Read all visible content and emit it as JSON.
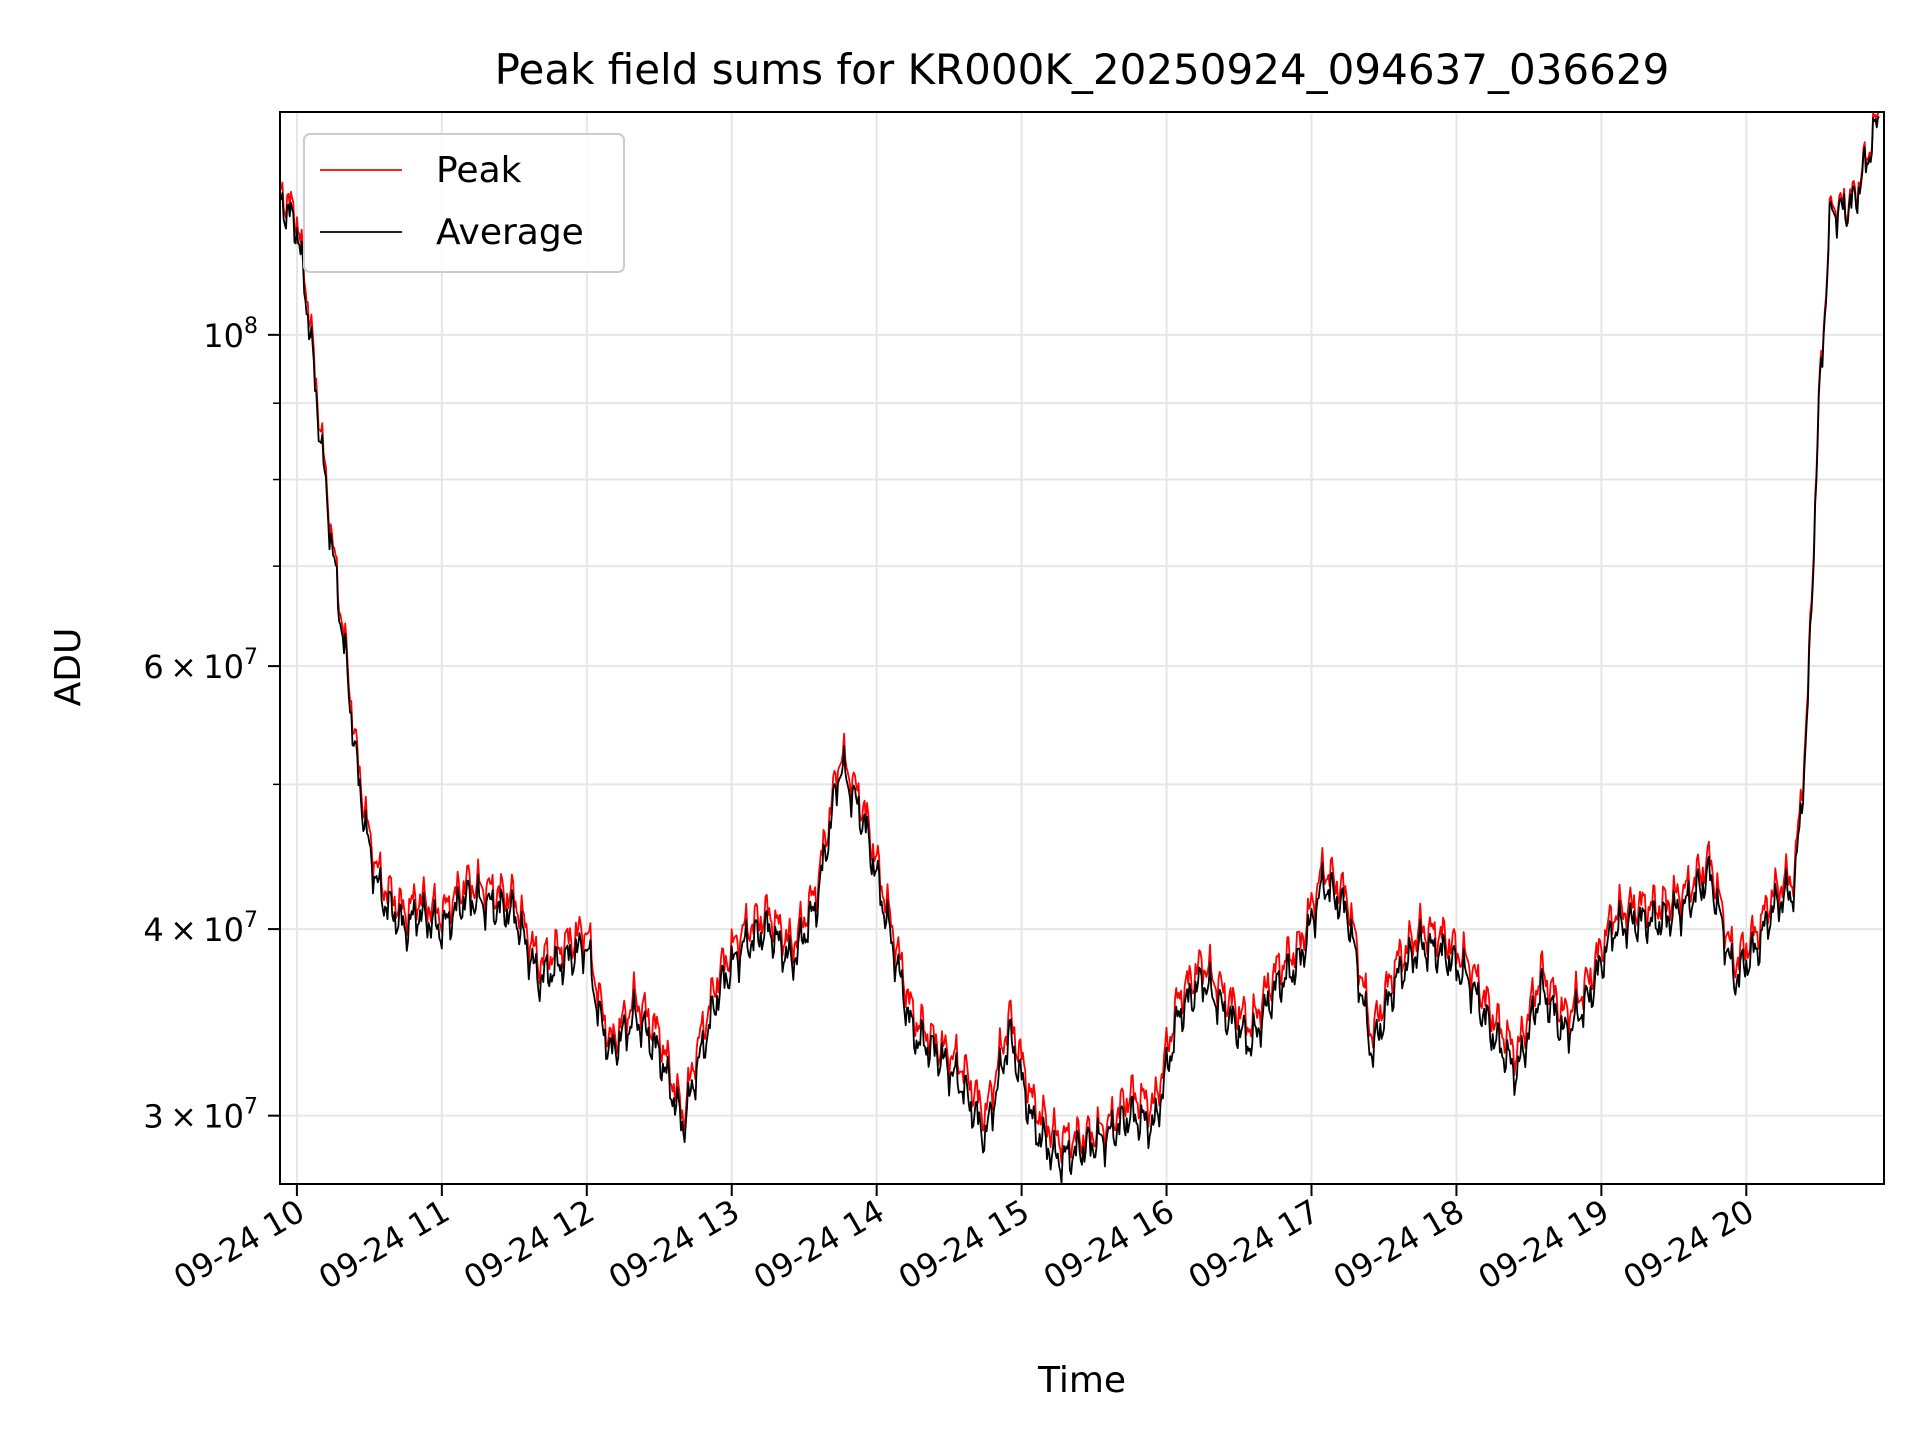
{
  "chart_data": {
    "type": "line",
    "title": "Peak field sums for KR000K_20250924_094637_036629",
    "xlabel": "Time",
    "ylabel": "ADU",
    "yscale": "log",
    "xlim": [
      "2025-09-24 09:53",
      "2025-09-24 20:57"
    ],
    "ylim": [
      27000000,
      141000000
    ],
    "grid": true,
    "legend_position": "top-left",
    "x_ticks": [
      {
        "value": "2025-09-24 10:00",
        "label": "09-24 10"
      },
      {
        "value": "2025-09-24 11:00",
        "label": "09-24 11"
      },
      {
        "value": "2025-09-24 12:00",
        "label": "09-24 12"
      },
      {
        "value": "2025-09-24 13:00",
        "label": "09-24 13"
      },
      {
        "value": "2025-09-24 14:00",
        "label": "09-24 14"
      },
      {
        "value": "2025-09-24 15:00",
        "label": "09-24 15"
      },
      {
        "value": "2025-09-24 16:00",
        "label": "09-24 16"
      },
      {
        "value": "2025-09-24 17:00",
        "label": "09-24 17"
      },
      {
        "value": "2025-09-24 18:00",
        "label": "09-24 18"
      },
      {
        "value": "2025-09-24 19:00",
        "label": "09-24 19"
      },
      {
        "value": "2025-09-24 20:00",
        "label": "09-24 20"
      }
    ],
    "y_ticks_major": [
      {
        "value": 30000000,
        "mantissa": "3",
        "exponent": "7"
      },
      {
        "value": 40000000,
        "mantissa": "4",
        "exponent": "7"
      },
      {
        "value": 60000000,
        "mantissa": "6",
        "exponent": "7"
      },
      {
        "value": 100000000,
        "mantissa": "",
        "exponent": "8"
      }
    ],
    "y_ticks_minor": [
      50000000,
      70000000,
      80000000,
      90000000
    ],
    "series": [
      {
        "name": "Peak",
        "color": "#ff0000",
        "x": [
          "2025-09-24 09:53",
          "2025-09-24 10:00",
          "2025-09-24 10:05",
          "2025-09-24 10:10",
          "2025-09-24 10:15",
          "2025-09-24 10:20",
          "2025-09-24 10:25",
          "2025-09-24 10:30",
          "2025-09-24 10:35",
          "2025-09-24 10:40",
          "2025-09-24 10:45",
          "2025-09-24 10:50",
          "2025-09-24 10:55",
          "2025-09-24 11:00",
          "2025-09-24 11:10",
          "2025-09-24 11:20",
          "2025-09-24 11:30",
          "2025-09-24 11:40",
          "2025-09-24 11:50",
          "2025-09-24 12:00",
          "2025-09-24 12:05",
          "2025-09-24 12:10",
          "2025-09-24 12:20",
          "2025-09-24 12:30",
          "2025-09-24 12:40",
          "2025-09-24 12:45",
          "2025-09-24 12:55",
          "2025-09-24 13:05",
          "2025-09-24 13:15",
          "2025-09-24 13:25",
          "2025-09-24 13:35",
          "2025-09-24 13:45",
          "2025-09-24 13:55",
          "2025-09-24 14:05",
          "2025-09-24 14:15",
          "2025-09-24 14:25",
          "2025-09-24 14:35",
          "2025-09-24 14:45",
          "2025-09-24 14:55",
          "2025-09-24 15:05",
          "2025-09-24 15:15",
          "2025-09-24 15:25",
          "2025-09-24 15:35",
          "2025-09-24 15:45",
          "2025-09-24 15:55",
          "2025-09-24 16:05",
          "2025-09-24 16:15",
          "2025-09-24 16:25",
          "2025-09-24 16:35",
          "2025-09-24 16:45",
          "2025-09-24 16:55",
          "2025-09-24 17:05",
          "2025-09-24 17:15",
          "2025-09-24 17:25",
          "2025-09-24 17:35",
          "2025-09-24 17:45",
          "2025-09-24 17:55",
          "2025-09-24 18:05",
          "2025-09-24 18:15",
          "2025-09-24 18:25",
          "2025-09-24 18:35",
          "2025-09-24 18:45",
          "2025-09-24 18:55",
          "2025-09-24 19:05",
          "2025-09-24 19:15",
          "2025-09-24 19:25",
          "2025-09-24 19:35",
          "2025-09-24 19:45",
          "2025-09-24 19:55",
          "2025-09-24 20:05",
          "2025-09-24 20:10",
          "2025-09-24 20:15",
          "2025-09-24 20:20",
          "2025-09-24 20:25",
          "2025-09-24 20:30",
          "2025-09-24 20:35",
          "2025-09-24 20:40",
          "2025-09-24 20:45",
          "2025-09-24 20:50",
          "2025-09-24 20:55"
        ],
        "values": [
          125000000,
          120000000,
          104000000,
          86000000,
          72000000,
          62000000,
          52000000,
          46000000,
          43000000,
          42000000,
          41000000,
          42000000,
          41500000,
          41000000,
          43000000,
          42500000,
          42000000,
          38000000,
          39000000,
          40000000,
          36000000,
          33500000,
          36000000,
          34000000,
          30000000,
          33000000,
          37500000,
          40000000,
          41000000,
          39000000,
          42500000,
          52500000,
          48000000,
          41000000,
          35000000,
          33500000,
          32500000,
          30000000,
          35000000,
          30500000,
          29000000,
          29000000,
          29500000,
          31000000,
          30500000,
          36000000,
          38000000,
          36000000,
          34500000,
          37500000,
          39000000,
          44000000,
          42000000,
          34000000,
          38000000,
          40000000,
          39500000,
          38000000,
          35000000,
          33000000,
          37500000,
          35000000,
          37000000,
          41000000,
          41500000,
          41500000,
          42500000,
          44500000,
          38000000,
          40000000,
          42000000,
          43000000,
          43500000,
          55000000,
          90000000,
          122000000,
          122000000,
          124000000,
          132000000,
          141000000
        ]
      },
      {
        "name": "Average",
        "color": "#000000",
        "x": [
          "2025-09-24 09:53",
          "2025-09-24 10:00",
          "2025-09-24 10:05",
          "2025-09-24 10:10",
          "2025-09-24 10:15",
          "2025-09-24 10:20",
          "2025-09-24 10:25",
          "2025-09-24 10:30",
          "2025-09-24 10:35",
          "2025-09-24 10:40",
          "2025-09-24 10:45",
          "2025-09-24 10:50",
          "2025-09-24 10:55",
          "2025-09-24 11:00",
          "2025-09-24 11:10",
          "2025-09-24 11:20",
          "2025-09-24 11:30",
          "2025-09-24 11:40",
          "2025-09-24 11:50",
          "2025-09-24 12:00",
          "2025-09-24 12:05",
          "2025-09-24 12:10",
          "2025-09-24 12:20",
          "2025-09-24 12:30",
          "2025-09-24 12:40",
          "2025-09-24 12:45",
          "2025-09-24 12:55",
          "2025-09-24 13:05",
          "2025-09-24 13:15",
          "2025-09-24 13:25",
          "2025-09-24 13:35",
          "2025-09-24 13:45",
          "2025-09-24 13:55",
          "2025-09-24 14:05",
          "2025-09-24 14:15",
          "2025-09-24 14:25",
          "2025-09-24 14:35",
          "2025-09-24 14:45",
          "2025-09-24 14:55",
          "2025-09-24 15:05",
          "2025-09-24 15:15",
          "2025-09-24 15:25",
          "2025-09-24 15:35",
          "2025-09-24 15:45",
          "2025-09-24 15:55",
          "2025-09-24 16:05",
          "2025-09-24 16:15",
          "2025-09-24 16:25",
          "2025-09-24 16:35",
          "2025-09-24 16:45",
          "2025-09-24 16:55",
          "2025-09-24 17:05",
          "2025-09-24 17:15",
          "2025-09-24 17:25",
          "2025-09-24 17:35",
          "2025-09-24 17:45",
          "2025-09-24 17:55",
          "2025-09-24 18:05",
          "2025-09-24 18:15",
          "2025-09-24 18:25",
          "2025-09-24 18:35",
          "2025-09-24 18:45",
          "2025-09-24 18:55",
          "2025-09-24 19:05",
          "2025-09-24 19:15",
          "2025-09-24 19:25",
          "2025-09-24 19:35",
          "2025-09-24 19:45",
          "2025-09-24 19:55",
          "2025-09-24 20:05",
          "2025-09-24 20:10",
          "2025-09-24 20:15",
          "2025-09-24 20:20",
          "2025-09-24 20:25",
          "2025-09-24 20:30",
          "2025-09-24 20:35",
          "2025-09-24 20:40",
          "2025-09-24 20:45",
          "2025-09-24 20:50",
          "2025-09-24 20:55"
        ],
        "values": [
          123000000,
          118000000,
          102000000,
          84500000,
          71000000,
          61000000,
          51000000,
          45000000,
          42000000,
          41000000,
          40000000,
          41000000,
          40500000,
          40000000,
          42000000,
          41500000,
          41000000,
          37000000,
          38000000,
          39000000,
          35000000,
          33000000,
          35000000,
          33000000,
          29500000,
          32000000,
          36500000,
          39000000,
          40000000,
          38000000,
          41500000,
          51500000,
          47000000,
          40000000,
          34000000,
          33000000,
          31500000,
          29000000,
          34000000,
          29500000,
          28000000,
          28500000,
          29000000,
          30000000,
          29500000,
          35000000,
          37000000,
          35000000,
          33500000,
          36500000,
          38000000,
          43000000,
          41000000,
          33000000,
          37000000,
          39000000,
          38500000,
          37000000,
          34000000,
          32000000,
          36500000,
          34000000,
          36000000,
          40000000,
          40500000,
          40500000,
          41500000,
          43500000,
          37000000,
          39000000,
          41000000,
          42000000,
          42500000,
          54000000,
          89000000,
          121000000,
          121000000,
          123000000,
          131000000,
          140000000
        ]
      }
    ]
  }
}
